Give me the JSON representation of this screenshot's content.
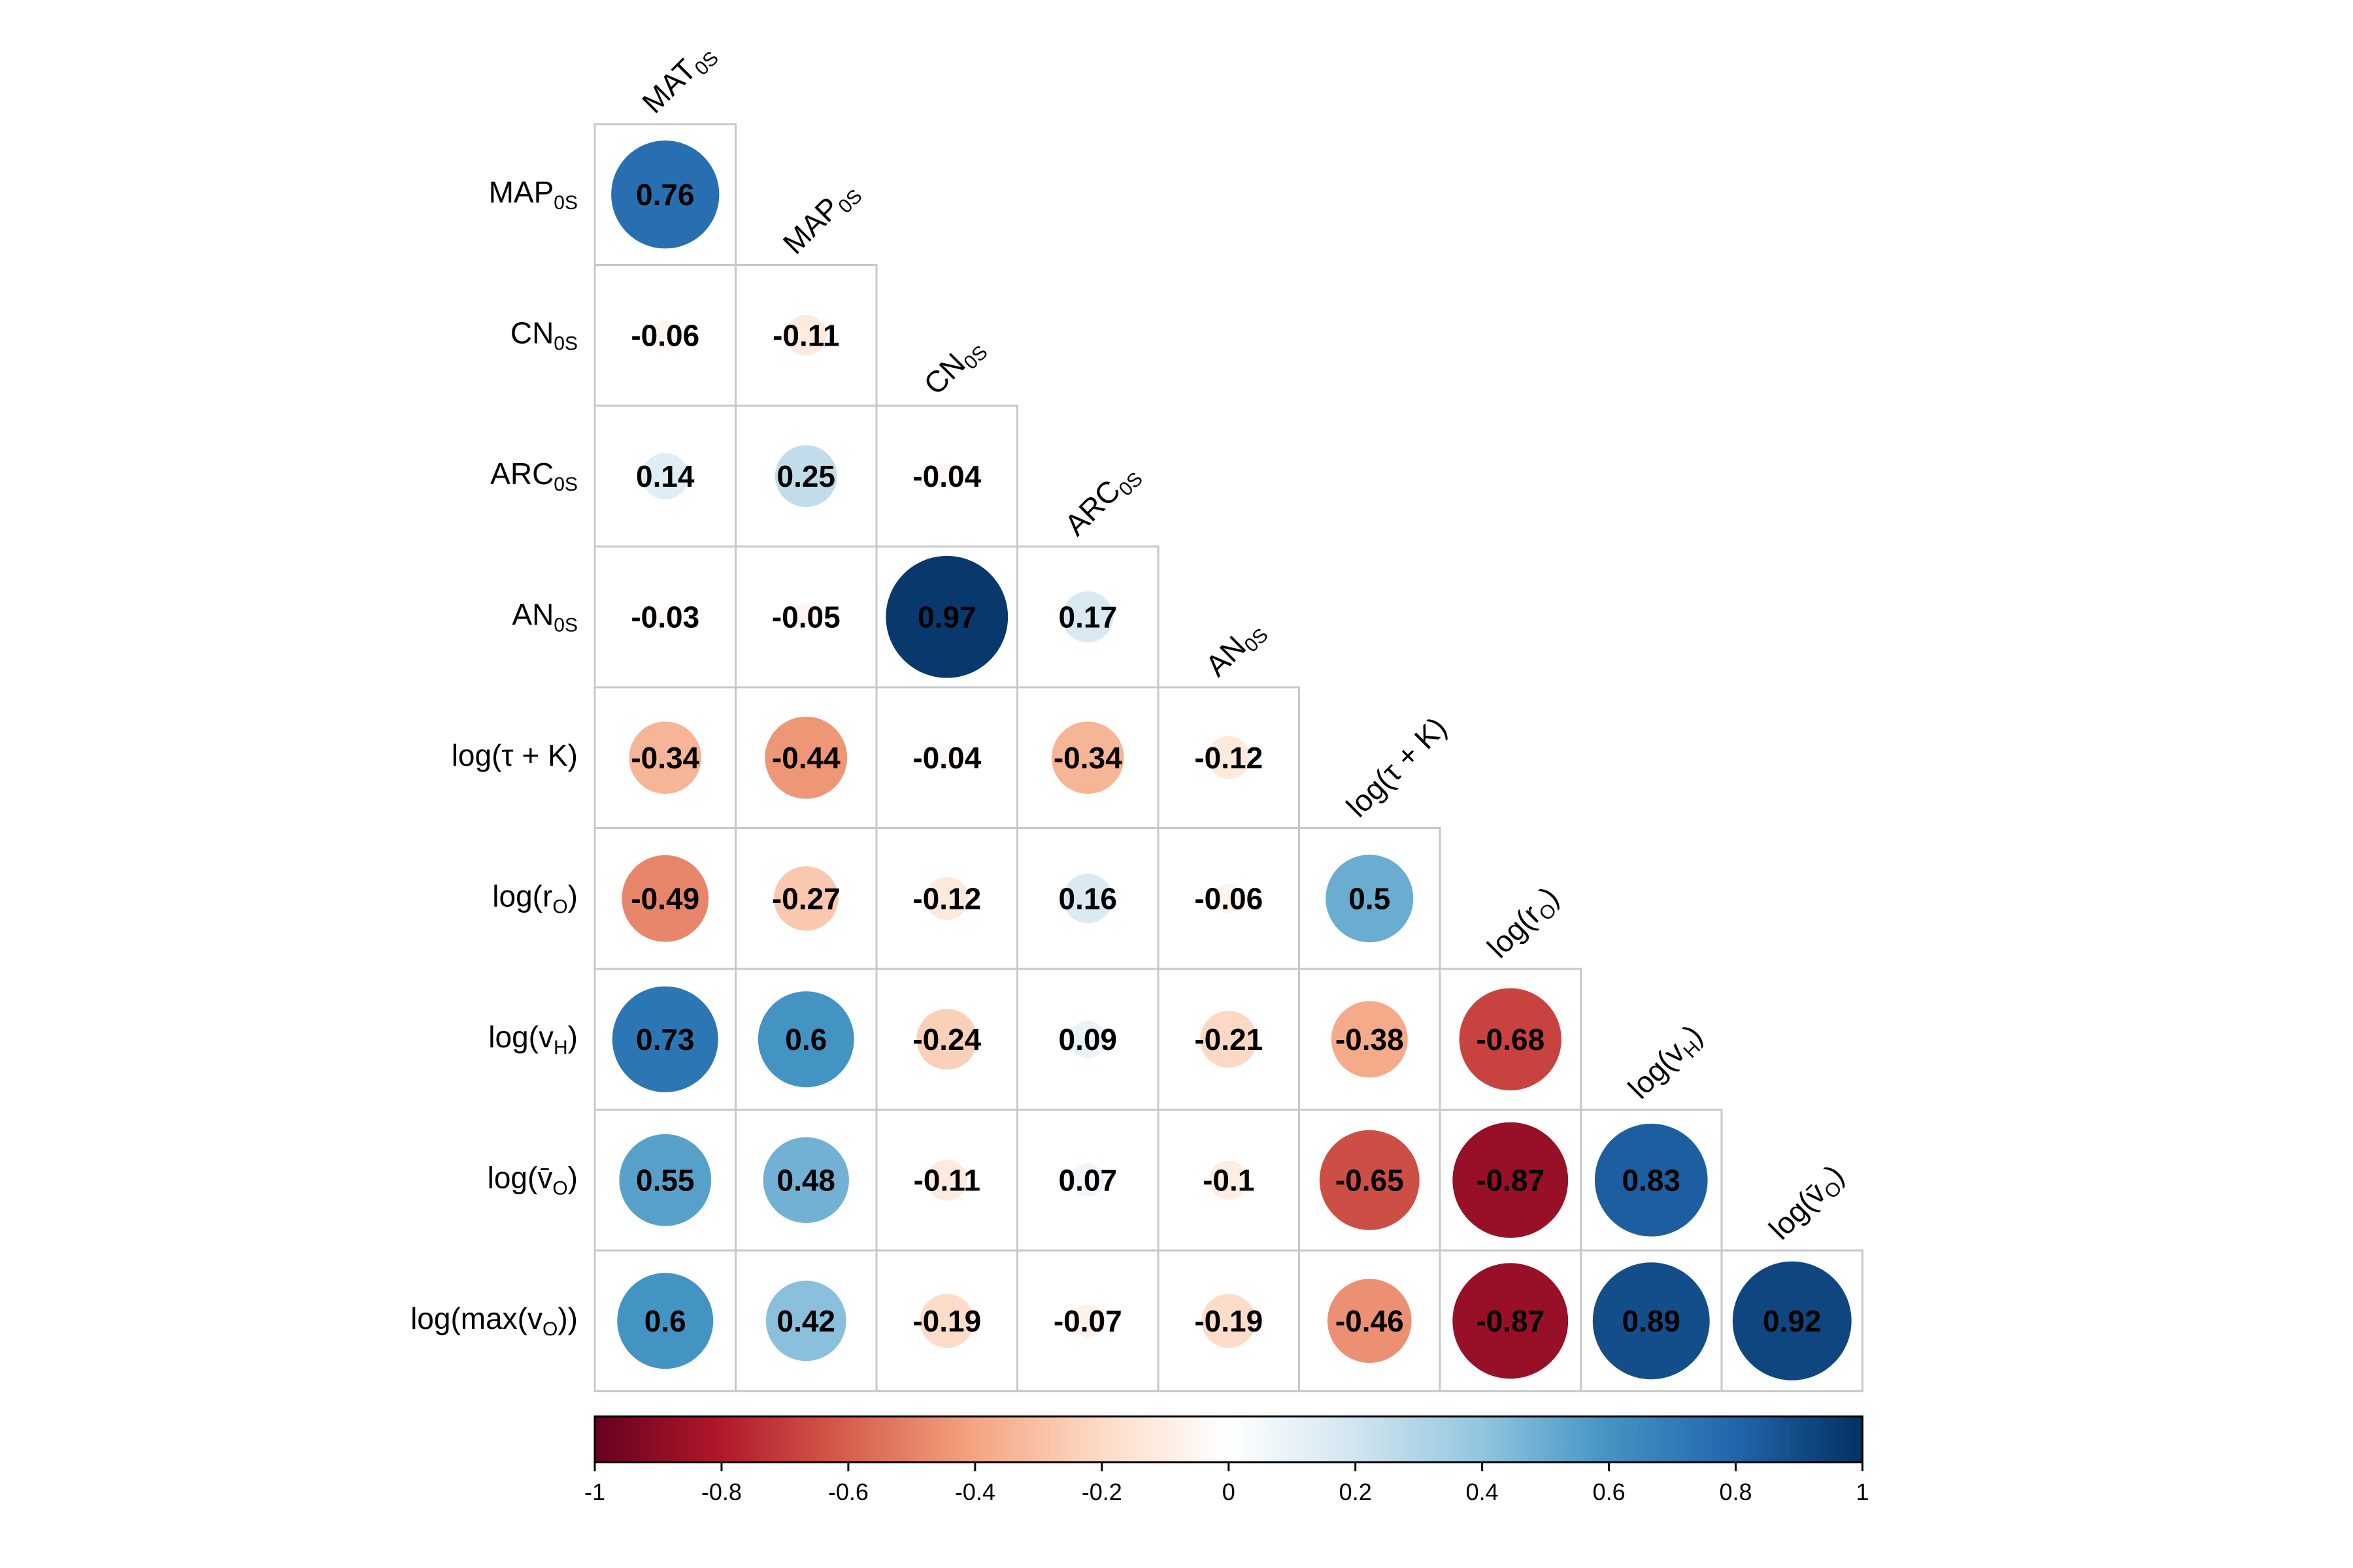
{
  "chart_data": {
    "type": "heatmap",
    "variables": [
      {
        "base": "MAT",
        "sub": "0S"
      },
      {
        "base": "MAP",
        "sub": "0S"
      },
      {
        "base": "CN",
        "sub": "0S"
      },
      {
        "base": "ARC",
        "sub": "0S"
      },
      {
        "base": "AN",
        "sub": "0S"
      },
      {
        "base": "log(τ + K)",
        "sub": ""
      },
      {
        "pre": "log(r",
        "sub": "O",
        "post": ")"
      },
      {
        "pre": "log(v",
        "sub": "H",
        "post": ")"
      },
      {
        "pre": "log(v̄",
        "sub": "O",
        "post": ")"
      },
      {
        "pre": "log(max(v",
        "sub": "O",
        "post": "))"
      }
    ],
    "correlations": [
      [
        0.76
      ],
      [
        -0.06,
        -0.11
      ],
      [
        0.14,
        0.25,
        -0.04
      ],
      [
        -0.03,
        -0.05,
        0.97,
        0.17
      ],
      [
        -0.34,
        -0.44,
        -0.04,
        -0.34,
        -0.12
      ],
      [
        -0.49,
        -0.27,
        -0.12,
        0.16,
        -0.06,
        0.5
      ],
      [
        0.73,
        0.6,
        -0.24,
        0.09,
        -0.21,
        -0.38,
        -0.68
      ],
      [
        0.55,
        0.48,
        -0.11,
        0.07,
        -0.1,
        -0.65,
        -0.87,
        0.83
      ],
      [
        0.6,
        0.42,
        -0.19,
        -0.07,
        -0.19,
        -0.46,
        -0.87,
        0.89,
        0.92
      ]
    ],
    "value_labels": [
      [
        "0.76"
      ],
      [
        "-0.06",
        "-0.11"
      ],
      [
        "0.14",
        "0.25",
        "-0.04"
      ],
      [
        "-0.03",
        "-0.05",
        "0.97",
        "0.17"
      ],
      [
        "-0.34",
        "-0.44",
        "-0.04",
        "-0.34",
        "-0.12"
      ],
      [
        "-0.49",
        "-0.27",
        "-0.12",
        "0.16",
        "-0.06",
        "0.5"
      ],
      [
        "0.73",
        "0.6",
        "-0.24",
        "0.09",
        "-0.21",
        "-0.38",
        "-0.68"
      ],
      [
        "0.55",
        "0.48",
        "-0.11",
        "0.07",
        "-0.1",
        "-0.65",
        "-0.87",
        "0.83"
      ],
      [
        "0.6",
        "0.42",
        "-0.19",
        "-0.07",
        "-0.19",
        "-0.46",
        "-0.87",
        "0.89",
        "0.92"
      ]
    ],
    "colorbar": {
      "range": [
        -1,
        1
      ],
      "ticks": [
        "-1",
        "-0.8",
        "-0.6",
        "-0.4",
        "-0.2",
        "0",
        "0.2",
        "0.4",
        "0.6",
        "0.8",
        "1"
      ],
      "colors": [
        "#67001f",
        "#b2182b",
        "#d6604d",
        "#f4a582",
        "#fddbc7",
        "#ffffff",
        "#d1e5f0",
        "#92c5de",
        "#4393c3",
        "#2166ac",
        "#053061"
      ]
    },
    "grid": true,
    "layout_type": "lower-triangle"
  }
}
